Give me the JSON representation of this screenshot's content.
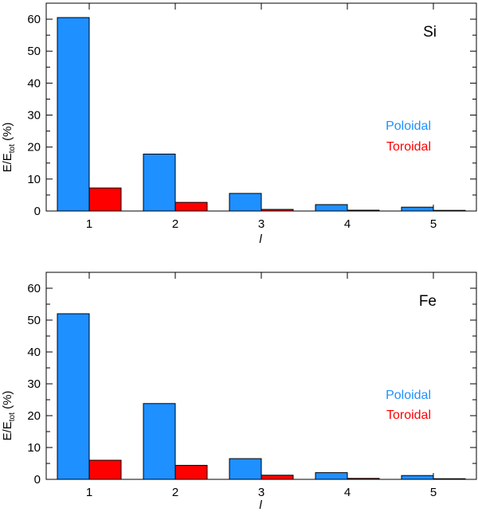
{
  "colors": {
    "poloidal": "#1e90ff",
    "toroidal": "#ff0000",
    "axis": "#000000"
  },
  "chart_data": [
    {
      "type": "bar",
      "title": "Si",
      "xlabel": "l",
      "ylabel_main": "E/E",
      "ylabel_sub": "tot",
      "ylabel_tail": " (%)",
      "categories": [
        "1",
        "2",
        "3",
        "4",
        "5"
      ],
      "ylim": [
        0,
        65
      ],
      "yticks": [
        "0",
        "10",
        "20",
        "30",
        "40",
        "50",
        "60"
      ],
      "series": [
        {
          "name": "Poloidal",
          "values": [
            60.5,
            17.8,
            5.5,
            2.0,
            1.2
          ]
        },
        {
          "name": "Toroidal",
          "values": [
            7.2,
            2.7,
            0.5,
            0.25,
            0.1
          ]
        }
      ]
    },
    {
      "type": "bar",
      "title": "Fe",
      "xlabel": "l",
      "ylabel_main": "E/E",
      "ylabel_sub": "tot",
      "ylabel_tail": " (%)",
      "categories": [
        "1",
        "2",
        "3",
        "4",
        "5"
      ],
      "ylim": [
        0,
        65
      ],
      "yticks": [
        "0",
        "10",
        "20",
        "30",
        "40",
        "50",
        "60"
      ],
      "series": [
        {
          "name": "Poloidal",
          "values": [
            52.0,
            23.8,
            6.5,
            2.1,
            1.2
          ]
        },
        {
          "name": "Toroidal",
          "values": [
            6.0,
            4.4,
            1.3,
            0.3,
            0.15
          ]
        }
      ]
    }
  ]
}
